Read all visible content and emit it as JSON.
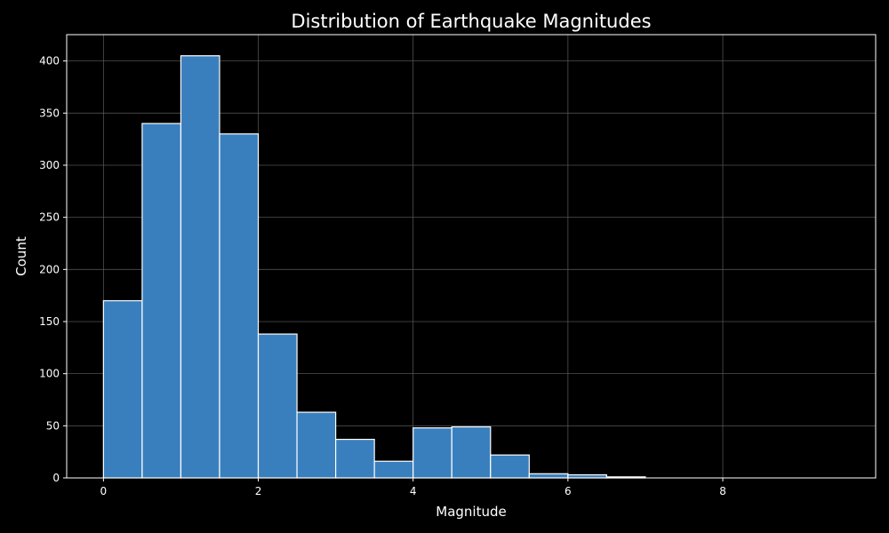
{
  "chart_data": {
    "type": "bar",
    "title": "Distribution of Earthquake Magnitudes",
    "xlabel": "Magnitude",
    "ylabel": "Count",
    "bin_width": 0.5,
    "bins": [
      {
        "x0": 0.0,
        "x1": 0.5,
        "count": 170
      },
      {
        "x0": 0.5,
        "x1": 1.0,
        "count": 340
      },
      {
        "x0": 1.0,
        "x1": 1.5,
        "count": 405
      },
      {
        "x0": 1.5,
        "x1": 2.0,
        "count": 330
      },
      {
        "x0": 2.0,
        "x1": 2.5,
        "count": 138
      },
      {
        "x0": 2.5,
        "x1": 3.0,
        "count": 63
      },
      {
        "x0": 3.0,
        "x1": 3.5,
        "count": 37
      },
      {
        "x0": 3.5,
        "x1": 4.0,
        "count": 16
      },
      {
        "x0": 4.0,
        "x1": 4.5,
        "count": 48
      },
      {
        "x0": 4.5,
        "x1": 5.0,
        "count": 49
      },
      {
        "x0": 5.0,
        "x1": 5.5,
        "count": 22
      },
      {
        "x0": 5.5,
        "x1": 6.0,
        "count": 4
      },
      {
        "x0": 6.0,
        "x1": 6.5,
        "count": 3
      },
      {
        "x0": 6.5,
        "x1": 7.0,
        "count": 1
      },
      {
        "x0": 7.0,
        "x1": 7.5,
        "count": 0
      },
      {
        "x0": 7.5,
        "x1": 8.0,
        "count": 0
      },
      {
        "x0": 8.0,
        "x1": 8.5,
        "count": 0
      },
      {
        "x0": 8.5,
        "x1": 9.0,
        "count": 0
      },
      {
        "x0": 9.0,
        "x1": 9.5,
        "count": 0
      }
    ],
    "xlim": [
      -0.475,
      9.975
    ],
    "ylim": [
      0,
      425.25
    ],
    "x_ticks": [
      0,
      2,
      4,
      6,
      8
    ],
    "y_ticks": [
      0,
      50,
      100,
      150,
      200,
      250,
      300,
      350,
      400
    ],
    "grid": true,
    "legend": "none",
    "colors": {
      "background": "#000000",
      "bar_fill": "#3a7fbd",
      "bar_edge": "#ffffff",
      "axis": "#ffffff",
      "grid": "#5a5a5a",
      "text": "#ffffff"
    }
  }
}
